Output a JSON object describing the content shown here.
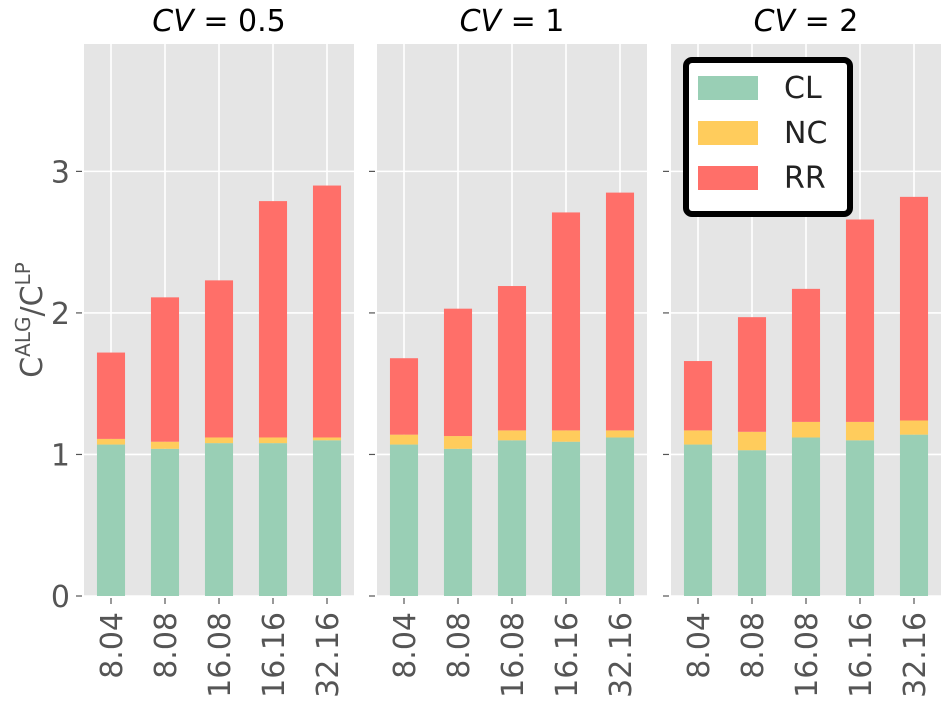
{
  "chart_data": {
    "type": "bar",
    "stacked": true,
    "ylabel": "C^ALG/C^LP",
    "ylabel_parts": {
      "base1": "C",
      "sup1": "ALG",
      "slash": "/",
      "base2": "C",
      "sup2": "LP"
    },
    "ylim": [
      0,
      3.9
    ],
    "yticks": [
      0,
      1,
      2,
      3
    ],
    "categories": [
      "8.04",
      "8.08",
      "16.08",
      "16.16",
      "32.16"
    ],
    "legend": {
      "position": "top-right",
      "entries": [
        {
          "name": "CL",
          "color": "#99cfb5"
        },
        {
          "name": "NC",
          "color": "#ffcc5c"
        },
        {
          "name": "RR",
          "color": "#ff6f69"
        }
      ]
    },
    "panels": [
      {
        "title_var": "CV",
        "title_value": "= 0.5",
        "series": [
          {
            "name": "CL",
            "values": [
              1.07,
              1.04,
              1.08,
              1.08,
              1.1
            ]
          },
          {
            "name": "NC",
            "values": [
              0.04,
              0.05,
              0.04,
              0.04,
              0.02
            ]
          },
          {
            "name": "RR",
            "values": [
              0.61,
              1.02,
              1.11,
              1.67,
              1.78
            ]
          }
        ]
      },
      {
        "title_var": "CV",
        "title_value": "= 1",
        "series": [
          {
            "name": "CL",
            "values": [
              1.07,
              1.04,
              1.1,
              1.09,
              1.12
            ]
          },
          {
            "name": "NC",
            "values": [
              0.07,
              0.09,
              0.07,
              0.08,
              0.05
            ]
          },
          {
            "name": "RR",
            "values": [
              0.54,
              0.9,
              1.02,
              1.54,
              1.68
            ]
          }
        ]
      },
      {
        "title_var": "CV",
        "title_value": "= 2",
        "series": [
          {
            "name": "CL",
            "values": [
              1.07,
              1.03,
              1.12,
              1.1,
              1.14
            ]
          },
          {
            "name": "NC",
            "values": [
              0.1,
              0.13,
              0.11,
              0.13,
              0.1
            ]
          },
          {
            "name": "RR",
            "values": [
              0.49,
              0.81,
              0.94,
              1.43,
              1.58
            ]
          }
        ]
      }
    ]
  }
}
